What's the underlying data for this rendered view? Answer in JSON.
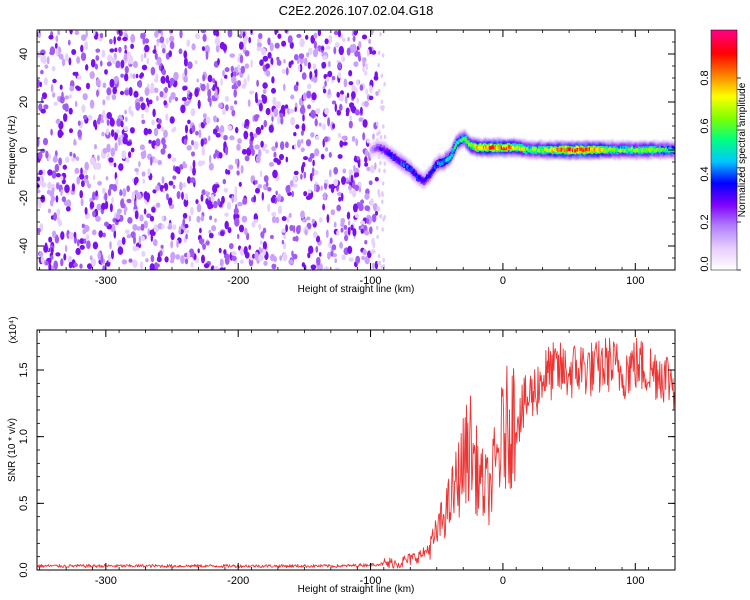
{
  "figure_title": "C2E2.2026.107.02.04.G18",
  "chart_data": [
    {
      "type": "heatmap",
      "title": "",
      "xlabel": "Height of straight line (km)",
      "ylabel": "Frequency (Hz)",
      "xlim": [
        -352,
        130
      ],
      "ylim": [
        -50,
        50
      ],
      "xticks": [
        -300,
        -200,
        -100,
        0,
        100
      ],
      "yticks": [
        -40,
        -20,
        0,
        20,
        40
      ],
      "colorbar": {
        "label": "Normalized spectral amplitude",
        "range": [
          0,
          1
        ],
        "ticks": [
          "0.0",
          "0.2",
          "0.4",
          "0.6",
          "0.8"
        ],
        "colors": [
          "#ffffff",
          "#e8ccff",
          "#b080ff",
          "#8000ff",
          "#0000ff",
          "#00c8ff",
          "#00ff80",
          "#80ff00",
          "#ffff00",
          "#ff8000",
          "#ff0000",
          "#ff0080"
        ]
      },
      "noise_region": {
        "x_range": [
          -352,
          -95
        ],
        "freq_range": [
          -50,
          50
        ],
        "amplitude": "0.0-0.15"
      },
      "ridge": [
        {
          "x": -100,
          "f": 0,
          "a": 0.15
        },
        {
          "x": -95,
          "f": 1,
          "a": 0.25
        },
        {
          "x": -90,
          "f": 0,
          "a": 0.3
        },
        {
          "x": -85,
          "f": -2,
          "a": 0.35
        },
        {
          "x": -80,
          "f": -4,
          "a": 0.35
        },
        {
          "x": -75,
          "f": -6,
          "a": 0.4
        },
        {
          "x": -70,
          "f": -8,
          "a": 0.35
        },
        {
          "x": -65,
          "f": -11,
          "a": 0.35
        },
        {
          "x": -60,
          "f": -13,
          "a": 0.3
        },
        {
          "x": -55,
          "f": -10,
          "a": 0.35
        },
        {
          "x": -50,
          "f": -6,
          "a": 0.4
        },
        {
          "x": -45,
          "f": -5,
          "a": 0.45
        },
        {
          "x": -40,
          "f": -3,
          "a": 0.5
        },
        {
          "x": -35,
          "f": 3,
          "a": 0.5
        },
        {
          "x": -30,
          "f": 5,
          "a": 0.55
        },
        {
          "x": -25,
          "f": 2,
          "a": 0.6
        },
        {
          "x": -20,
          "f": 1,
          "a": 0.75
        },
        {
          "x": -10,
          "f": 1,
          "a": 0.85
        },
        {
          "x": 0,
          "f": 1,
          "a": 0.8
        },
        {
          "x": 10,
          "f": 1,
          "a": 0.75
        },
        {
          "x": 20,
          "f": 0,
          "a": 0.6
        },
        {
          "x": 30,
          "f": 0,
          "a": 0.65
        },
        {
          "x": 40,
          "f": 0,
          "a": 0.75
        },
        {
          "x": 50,
          "f": 0,
          "a": 0.85
        },
        {
          "x": 60,
          "f": 0,
          "a": 0.9
        },
        {
          "x": 70,
          "f": 0,
          "a": 0.8
        },
        {
          "x": 80,
          "f": 0,
          "a": 0.65
        },
        {
          "x": 90,
          "f": 0,
          "a": 0.6
        },
        {
          "x": 100,
          "f": 0,
          "a": 0.6
        },
        {
          "x": 110,
          "f": 0,
          "a": 0.65
        },
        {
          "x": 120,
          "f": 0,
          "a": 0.55
        },
        {
          "x": 130,
          "f": 0,
          "a": 0.5
        }
      ]
    },
    {
      "type": "line",
      "title": "",
      "xlabel": "Height of straight line (km)",
      "ylabel": "SNR (10 * v/v)",
      "yscale_label": "(x10⁴)",
      "xlim": [
        -352,
        130
      ],
      "ylim": [
        0,
        1.8
      ],
      "xticks": [
        -300,
        -200,
        -100,
        0,
        100
      ],
      "yticks": [
        "0.0",
        "0.5",
        "1.0",
        "1.5"
      ],
      "color": "#ee3333",
      "series": [
        {
          "x": [
            -352,
            -300,
            -200,
            -120,
            -80,
            -70,
            -60,
            -55,
            -50,
            -45,
            -40,
            -35,
            -30,
            -25,
            -20,
            -15,
            -10,
            -5,
            0,
            5,
            10,
            15,
            20,
            25,
            30,
            40,
            50,
            60,
            70,
            80,
            90,
            100,
            110,
            120,
            130
          ],
          "y": [
            0.03,
            0.03,
            0.03,
            0.03,
            0.05,
            0.08,
            0.12,
            0.18,
            0.28,
            0.4,
            0.5,
            0.65,
            0.8,
            0.95,
            0.75,
            0.62,
            0.6,
            0.8,
            1.0,
            1.1,
            1.15,
            1.2,
            1.3,
            1.35,
            1.45,
            1.5,
            1.48,
            1.52,
            1.5,
            1.55,
            1.48,
            1.55,
            1.5,
            1.48,
            1.4
          ]
        }
      ]
    }
  ]
}
